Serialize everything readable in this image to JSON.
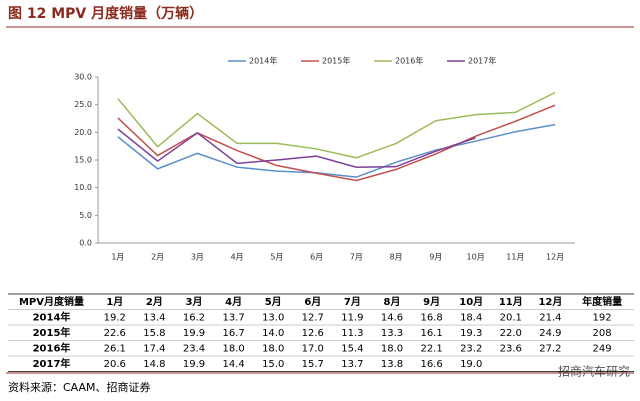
{
  "title": "图 12 MPV 月度销量（万辆）",
  "chart_data": {
    "type": "line",
    "categories": [
      "1月",
      "2月",
      "3月",
      "4月",
      "5月",
      "6月",
      "7月",
      "8月",
      "9月",
      "10月",
      "11月",
      "12月"
    ],
    "series": [
      {
        "name": "2014年",
        "color": "#5b8fc9",
        "values": [
          19.2,
          13.4,
          16.2,
          13.7,
          13.0,
          12.7,
          11.9,
          14.6,
          16.8,
          18.4,
          20.1,
          21.4
        ]
      },
      {
        "name": "2015年",
        "color": "#c0504d",
        "values": [
          22.6,
          15.8,
          19.9,
          16.7,
          14.0,
          12.6,
          11.3,
          13.3,
          16.1,
          19.3,
          22.0,
          24.9
        ]
      },
      {
        "name": "2016年",
        "color": "#9bbb59",
        "values": [
          26.1,
          17.4,
          23.4,
          18.0,
          18.0,
          17.0,
          15.4,
          18.0,
          22.1,
          23.2,
          23.6,
          27.2
        ]
      },
      {
        "name": "2017年",
        "color": "#7f3f98",
        "values": [
          20.6,
          14.8,
          19.9,
          14.4,
          15.0,
          15.7,
          13.7,
          13.8,
          16.6,
          19.0,
          null,
          null
        ]
      }
    ],
    "ylim": [
      0,
      30
    ],
    "yticks": [
      {
        "value": 0,
        "label": "0.0"
      },
      {
        "value": 5,
        "label": "5.0"
      },
      {
        "value": 10,
        "label": "10.0"
      },
      {
        "value": 15,
        "label": "15.0"
      },
      {
        "value": 20,
        "label": "20.0"
      },
      {
        "value": 25,
        "label": "25.0"
      },
      {
        "value": 30,
        "label": "30.0"
      }
    ],
    "legend": "top"
  },
  "table": {
    "header": [
      "MPV月度销量",
      "1月",
      "2月",
      "3月",
      "4月",
      "5月",
      "6月",
      "7月",
      "8月",
      "9月",
      "10月",
      "11月",
      "12月",
      "年度销量"
    ],
    "rows": [
      [
        "2014年",
        "19.2",
        "13.4",
        "16.2",
        "13.7",
        "13.0",
        "12.7",
        "11.9",
        "14.6",
        "16.8",
        "18.4",
        "20.1",
        "21.4",
        "192"
      ],
      [
        "2015年",
        "22.6",
        "15.8",
        "19.9",
        "16.7",
        "14.0",
        "12.6",
        "11.3",
        "13.3",
        "16.1",
        "19.3",
        "22.0",
        "24.9",
        "208"
      ],
      [
        "2016年",
        "26.1",
        "17.4",
        "23.4",
        "18.0",
        "18.0",
        "17.0",
        "15.4",
        "18.0",
        "22.1",
        "23.2",
        "23.6",
        "27.2",
        "249"
      ],
      [
        "2017年",
        "20.6",
        "14.8",
        "19.9",
        "14.4",
        "15.0",
        "15.7",
        "13.7",
        "13.8",
        "16.6",
        "19.0"
      ]
    ]
  },
  "source": "资料来源：CAAM、招商证券",
  "watermark": "招商汽车研究"
}
